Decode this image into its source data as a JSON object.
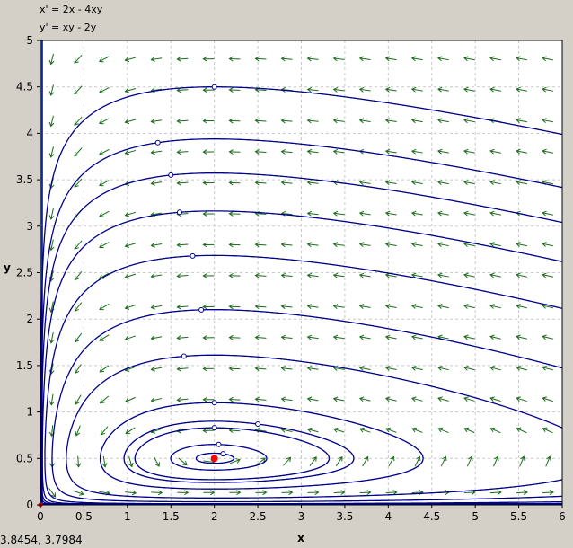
{
  "chart_data": {
    "type": "phase-plane",
    "equations": [
      "x' = 2x - 4xy",
      "y' = xy - 2y"
    ],
    "xlabel": "x",
    "ylabel": "y",
    "xlim": [
      0,
      6
    ],
    "ylim": [
      0,
      5
    ],
    "xticks": [
      "0",
      "0.5",
      "1",
      "1.5",
      "2",
      "2.5",
      "3",
      "3.5",
      "4",
      "4.5",
      "5",
      "5.5",
      "6"
    ],
    "yticks": [
      "0",
      "0.5",
      "1",
      "1.5",
      "2",
      "2.5",
      "3",
      "3.5",
      "4",
      "4.5",
      "5"
    ],
    "grid": true,
    "direction_field": {
      "color": "#1a6b1a",
      "columns": 20,
      "rows": 15
    },
    "trajectory_color": "#00008b",
    "initial_points": [
      [
        2,
        4.5
      ],
      [
        1.35,
        3.9
      ],
      [
        1.5,
        3.55
      ],
      [
        1.6,
        3.15
      ],
      [
        1.75,
        2.68
      ],
      [
        1.85,
        2.1
      ],
      [
        1.65,
        1.6
      ],
      [
        2,
        1.1
      ],
      [
        2,
        0.83
      ],
      [
        2.5,
        0.87
      ],
      [
        2.05,
        0.65
      ],
      [
        2.1,
        0.55
      ]
    ],
    "equilibria": [
      {
        "x": 2,
        "y": 0.5,
        "color": "#ff0000"
      },
      {
        "x": 0,
        "y": 0,
        "color": "#ff0000"
      }
    ]
  },
  "readout": "3.8454,  3.7984"
}
